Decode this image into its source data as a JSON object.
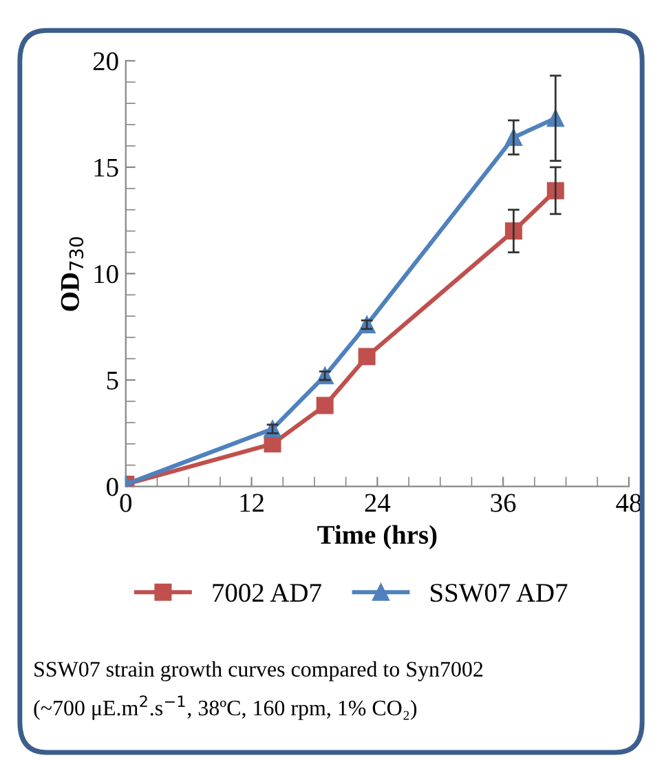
{
  "chart_data": {
    "type": "line",
    "xlabel": "Time (hrs)",
    "ylabel": "OD$_{730}$",
    "x": [
      0,
      14,
      19,
      23,
      37,
      41
    ],
    "series": [
      {
        "name": "7002 AD7",
        "color": "#c0504d",
        "marker": "square",
        "values": [
          0.1,
          2.0,
          3.8,
          6.1,
          12.0,
          13.9
        ],
        "errors": [
          null,
          null,
          null,
          null,
          1.0,
          1.1
        ]
      },
      {
        "name": "SSW07 AD7",
        "color": "#4f81bd",
        "marker": "triangle",
        "values": [
          0.1,
          2.7,
          5.2,
          7.6,
          16.4,
          17.3
        ],
        "errors": [
          null,
          0.2,
          0.2,
          0.2,
          0.8,
          2.0
        ]
      }
    ],
    "xlim": [
      0,
      48
    ],
    "xticks": [
      0,
      12,
      24,
      36,
      48
    ],
    "ylim": [
      0,
      20
    ],
    "yticks": [
      0,
      5,
      10,
      15,
      20
    ],
    "grid": false,
    "legend": "bottom",
    "annotations": [
      "SSW07 strain growth curves compared to Syn7002",
      "(~700 μE.m$^{2}$.s$^{−1}$, 38ºC, 160 rpm, 1% CO₂)"
    ]
  }
}
